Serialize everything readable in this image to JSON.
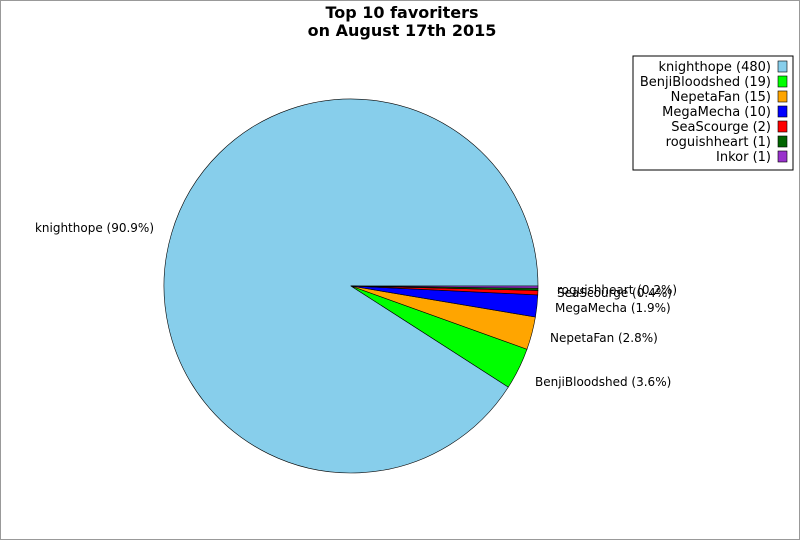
{
  "chart_data": {
    "type": "pie",
    "title": "Top 10 favoriters",
    "subtitle": "on August 17th 2015",
    "slices": [
      {
        "name": "knighthope",
        "value": 480,
        "percent": "90.9%",
        "color": "#87ceeb"
      },
      {
        "name": "BenjiBloodshed",
        "value": 19,
        "percent": "3.6%",
        "color": "#00ff00"
      },
      {
        "name": "NepetaFan",
        "value": 15,
        "percent": "2.8%",
        "color": "#ffa500"
      },
      {
        "name": "MegaMecha",
        "value": 10,
        "percent": "1.9%",
        "color": "#0000ff"
      },
      {
        "name": "SeaScourge",
        "value": 2,
        "percent": "0.4%",
        "color": "#ff0000"
      },
      {
        "name": "roguishheart",
        "value": 1,
        "percent": "0.2%",
        "color": "#006400"
      },
      {
        "name": "Inkor",
        "value": 1,
        "percent": "",
        "color": "#9932cc"
      }
    ],
    "legend_position": "top-right"
  }
}
